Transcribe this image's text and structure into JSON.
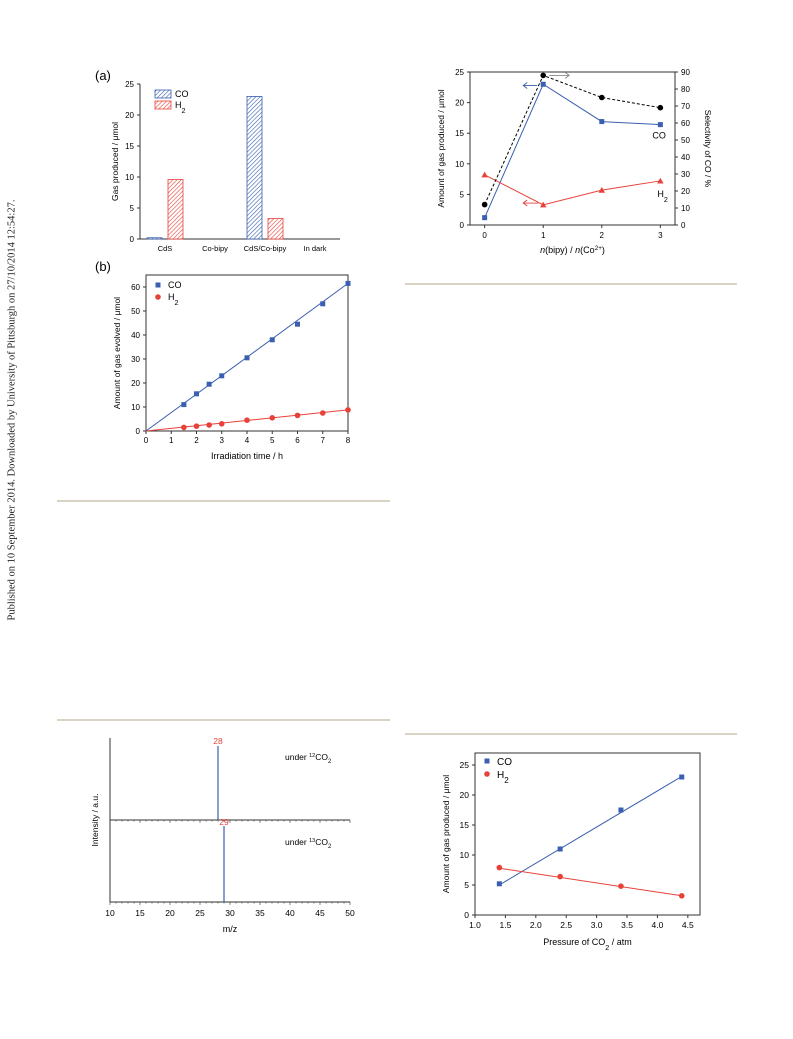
{
  "side_note": "Published on 10 September 2014. Downloaded by University of Pittsburgh on 27/10/2014 12:54:27.",
  "colors": {
    "co": "#3a5fb0",
    "h2": "#e8413a",
    "axis": "#333333",
    "rule": "#d8d3c3",
    "dot": "#000000"
  },
  "chart_data": [
    {
      "id": "bar-chart",
      "type": "bar",
      "panel_label": "(a)",
      "ylabel": "Gas produced / μmol",
      "categories": [
        "CdS",
        "Co-bipy",
        "CdS/Co-bipy",
        "In dark"
      ],
      "series": [
        {
          "name": "CO",
          "values": [
            0.2,
            0,
            23,
            0
          ]
        },
        {
          "name": "H2",
          "values": [
            9.6,
            0,
            3.3,
            0
          ]
        }
      ],
      "ylim": [
        0,
        25
      ],
      "yticks": [
        0,
        5,
        10,
        15,
        20,
        25
      ],
      "legend": "top-left"
    },
    {
      "id": "time-chart",
      "type": "scatter",
      "panel_label": "(b)",
      "xlabel": "Irradiation time / h",
      "ylabel": "Amount of gas evolved / μmol",
      "xlim": [
        0,
        8
      ],
      "ylim": [
        0,
        65
      ],
      "xticks": [
        0,
        1,
        2,
        3,
        4,
        5,
        6,
        7,
        8
      ],
      "yticks": [
        0,
        10,
        20,
        30,
        40,
        50,
        60
      ],
      "series": [
        {
          "name": "CO",
          "x": [
            1.5,
            2,
            2.5,
            3,
            4,
            5,
            6,
            7,
            8
          ],
          "y": [
            11,
            15.5,
            19.5,
            23,
            30.5,
            38,
            44.5,
            53,
            61.5
          ],
          "fit": [
            [
              0,
              0
            ],
            [
              8,
              61.5
            ]
          ]
        },
        {
          "name": "H2",
          "x": [
            1.5,
            2,
            2.5,
            3,
            4,
            5,
            6,
            7,
            8
          ],
          "y": [
            1.5,
            2,
            2.5,
            3,
            4.5,
            5.5,
            6.5,
            7.5,
            8.8
          ],
          "fit": [
            [
              0,
              0
            ],
            [
              8,
              8.8
            ]
          ]
        }
      ],
      "legend": "top-left"
    },
    {
      "id": "ratio-chart",
      "type": "line",
      "xlabel": "n(bipy) / n(Co2+)",
      "ylabel": "Amount of gas produced / μmol",
      "y2label": "Selectivity of CO / %",
      "xticks": [
        0,
        1,
        2,
        3
      ],
      "yticks": [
        0,
        5,
        10,
        15,
        20,
        25
      ],
      "y2ticks": [
        0,
        10,
        20,
        30,
        40,
        50,
        60,
        70,
        80,
        90
      ],
      "xlim": [
        -0.25,
        3.25
      ],
      "ylim": [
        0,
        25
      ],
      "y2lim": [
        0,
        90
      ],
      "series": [
        {
          "name": "CO",
          "x": [
            0,
            1,
            2,
            3
          ],
          "y": [
            1.2,
            23,
            16.9,
            16.4
          ],
          "label": "CO"
        },
        {
          "name": "H2",
          "x": [
            0,
            1,
            2,
            3
          ],
          "y": [
            8.2,
            3.3,
            5.7,
            7.2
          ],
          "label": "H2"
        },
        {
          "name": "Selectivity",
          "axis": "right",
          "x": [
            0,
            1,
            2,
            3
          ],
          "y": [
            12,
            88,
            75,
            69
          ]
        }
      ]
    },
    {
      "id": "mass-spec-chart",
      "type": "line",
      "xlabel": "m/z",
      "ylabel": "Intensity / a.u.",
      "xlim": [
        10,
        50
      ],
      "xticks": [
        10,
        15,
        20,
        25,
        30,
        35,
        40,
        45,
        50
      ],
      "series": [
        {
          "name": "under 12CO2",
          "peak_x": 28,
          "peak_label": "28",
          "annotation_pre": "under ",
          "annotation_sup": "12",
          "annotation_main": "CO",
          "annotation_sub": "2"
        },
        {
          "name": "under 13CO2",
          "peak_x": 29,
          "peak_label": "29",
          "annotation_pre": "under ",
          "annotation_sup": "13",
          "annotation_main": "CO",
          "annotation_sub": "2"
        }
      ]
    },
    {
      "id": "pressure-chart",
      "type": "scatter",
      "xlabel": "Pressure of CO2 / atm",
      "ylabel": "Amount of gas produced / μmol",
      "xlim": [
        1.0,
        4.7
      ],
      "ylim": [
        0,
        27
      ],
      "xticks": [
        1.0,
        1.5,
        2.0,
        2.5,
        3.0,
        3.5,
        4.0,
        4.5
      ],
      "yticks": [
        0,
        5,
        10,
        15,
        20,
        25
      ],
      "series": [
        {
          "name": "CO",
          "x": [
            1.4,
            2.4,
            3.4,
            4.4
          ],
          "y": [
            5.2,
            11,
            17.5,
            23
          ],
          "fit": [
            [
              1.4,
              5.0
            ],
            [
              4.4,
              23.1
            ]
          ]
        },
        {
          "name": "H2",
          "x": [
            1.4,
            2.4,
            3.4,
            4.4
          ],
          "y": [
            7.9,
            6.4,
            4.8,
            3.2
          ],
          "fit": [
            [
              1.4,
              7.8
            ],
            [
              4.4,
              3.2
            ]
          ]
        }
      ],
      "legend": "top-left"
    }
  ]
}
